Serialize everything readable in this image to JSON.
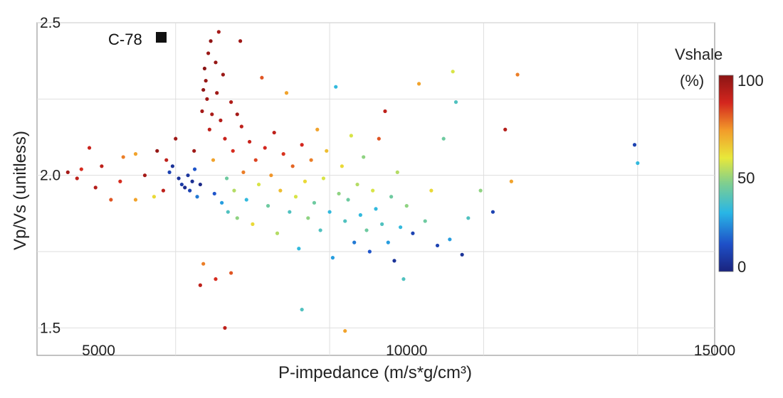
{
  "chart_data": {
    "type": "scatter",
    "title": "",
    "xlabel": "P-impedance (m/s*g/cm³)",
    "ylabel": "Vp/Vs (unitless)",
    "xlim": [
      4000,
      15000
    ],
    "ylim": [
      1.41,
      2.5
    ],
    "x_ticks": [
      5000,
      10000,
      15000
    ],
    "y_ticks": [
      1.5,
      2.0,
      2.5
    ],
    "x_tick_labels": [
      "5000",
      "10000",
      "15000"
    ],
    "y_tick_labels": [
      "1.5",
      "2.0",
      "2.5"
    ],
    "grid": true,
    "well_label": "C-78",
    "colorbar": {
      "title": "Vshale",
      "unit": "(%)",
      "range": [
        0,
        100
      ],
      "ticks": [
        "0",
        "50",
        "100"
      ],
      "colormap": [
        "#1a237e",
        "#1e50c8",
        "#29b6e6",
        "#7fcf8f",
        "#e8e83a",
        "#f29b2a",
        "#d4261e",
        "#8b1414"
      ]
    },
    "points": [
      [
        4500,
        2.01,
        95
      ],
      [
        4650,
        1.99,
        90
      ],
      [
        4720,
        2.02,
        85
      ],
      [
        4850,
        2.09,
        88
      ],
      [
        4950,
        1.96,
        92
      ],
      [
        5050,
        2.03,
        90
      ],
      [
        5200,
        1.92,
        80
      ],
      [
        5350,
        1.98,
        85
      ],
      [
        5600,
        2.07,
        70
      ],
      [
        5750,
        2.0,
        95
      ],
      [
        5900,
        1.93,
        60
      ],
      [
        5950,
        2.08,
        98
      ],
      [
        6050,
        1.95,
        90
      ],
      [
        6150,
        2.01,
        10
      ],
      [
        6200,
        2.03,
        5
      ],
      [
        6250,
        2.12,
        96
      ],
      [
        6300,
        1.99,
        5
      ],
      [
        6350,
        1.97,
        8
      ],
      [
        6400,
        1.96,
        3
      ],
      [
        6450,
        2.0,
        6
      ],
      [
        6480,
        1.95,
        10
      ],
      [
        6520,
        1.98,
        4
      ],
      [
        6560,
        2.02,
        15
      ],
      [
        6600,
        1.93,
        20
      ],
      [
        6650,
        1.97,
        2
      ],
      [
        6680,
        2.21,
        95
      ],
      [
        6700,
        2.28,
        99
      ],
      [
        6720,
        2.35,
        100
      ],
      [
        6740,
        2.31,
        98
      ],
      [
        6760,
        2.25,
        96
      ],
      [
        6780,
        2.4,
        97
      ],
      [
        6800,
        2.15,
        90
      ],
      [
        6820,
        2.44,
        99
      ],
      [
        6840,
        2.2,
        94
      ],
      [
        6860,
        2.05,
        70
      ],
      [
        6880,
        1.94,
        15
      ],
      [
        6900,
        2.37,
        98
      ],
      [
        6920,
        2.27,
        96
      ],
      [
        6950,
        2.47,
        95
      ],
      [
        6980,
        2.18,
        92
      ],
      [
        7000,
        1.91,
        25
      ],
      [
        7020,
        2.33,
        97
      ],
      [
        7050,
        2.12,
        88
      ],
      [
        7080,
        1.99,
        40
      ],
      [
        7100,
        1.88,
        35
      ],
      [
        7150,
        2.24,
        93
      ],
      [
        7180,
        2.08,
        85
      ],
      [
        7200,
        1.95,
        50
      ],
      [
        7250,
        1.86,
        45
      ],
      [
        7300,
        2.44,
        96
      ],
      [
        7320,
        2.16,
        90
      ],
      [
        7350,
        2.01,
        75
      ],
      [
        7400,
        1.92,
        30
      ],
      [
        7450,
        2.11,
        88
      ],
      [
        7500,
        1.84,
        60
      ],
      [
        7550,
        2.05,
        82
      ],
      [
        7600,
        1.97,
        55
      ],
      [
        7650,
        2.32,
        80
      ],
      [
        7700,
        2.09,
        86
      ],
      [
        7750,
        1.9,
        40
      ],
      [
        7800,
        2.0,
        72
      ],
      [
        7850,
        2.14,
        90
      ],
      [
        7900,
        1.81,
        50
      ],
      [
        7950,
        1.95,
        65
      ],
      [
        8000,
        2.07,
        84
      ],
      [
        8050,
        2.27,
        70
      ],
      [
        8100,
        1.88,
        35
      ],
      [
        8150,
        2.03,
        78
      ],
      [
        8200,
        1.93,
        55
      ],
      [
        8250,
        1.76,
        30
      ],
      [
        8300,
        2.1,
        86
      ],
      [
        8350,
        1.98,
        60
      ],
      [
        8400,
        1.86,
        45
      ],
      [
        8450,
        2.05,
        75
      ],
      [
        8500,
        1.91,
        40
      ],
      [
        8550,
        2.15,
        70
      ],
      [
        8600,
        1.82,
        35
      ],
      [
        8650,
        1.99,
        55
      ],
      [
        8700,
        2.08,
        65
      ],
      [
        8750,
        1.88,
        30
      ],
      [
        8800,
        1.73,
        25
      ],
      [
        8850,
        2.29,
        30
      ],
      [
        8900,
        1.94,
        45
      ],
      [
        8950,
        2.03,
        60
      ],
      [
        9000,
        1.85,
        35
      ],
      [
        9050,
        1.92,
        40
      ],
      [
        9100,
        2.13,
        55
      ],
      [
        9150,
        1.78,
        20
      ],
      [
        9200,
        1.97,
        50
      ],
      [
        9250,
        1.87,
        30
      ],
      [
        9300,
        2.06,
        45
      ],
      [
        9350,
        1.82,
        40
      ],
      [
        9400,
        1.75,
        15
      ],
      [
        9450,
        1.95,
        55
      ],
      [
        9500,
        1.89,
        30
      ],
      [
        9550,
        2.12,
        80
      ],
      [
        9600,
        1.84,
        35
      ],
      [
        9650,
        2.21,
        90
      ],
      [
        9700,
        1.78,
        25
      ],
      [
        9750,
        1.93,
        40
      ],
      [
        9800,
        1.72,
        5
      ],
      [
        9850,
        2.01,
        50
      ],
      [
        9900,
        1.83,
        30
      ],
      [
        9950,
        1.66,
        35
      ],
      [
        10000,
        1.9,
        45
      ],
      [
        10100,
        1.81,
        10
      ],
      [
        10200,
        2.3,
        70
      ],
      [
        10300,
        1.85,
        40
      ],
      [
        10400,
        1.95,
        60
      ],
      [
        10500,
        1.77,
        10
      ],
      [
        10600,
        2.12,
        40
      ],
      [
        10700,
        1.79,
        25
      ],
      [
        10750,
        2.34,
        55
      ],
      [
        10800,
        2.24,
        35
      ],
      [
        10900,
        1.74,
        5
      ],
      [
        11000,
        1.86,
        35
      ],
      [
        11200,
        1.95,
        45
      ],
      [
        11400,
        1.88,
        10
      ],
      [
        11600,
        2.15,
        92
      ],
      [
        11700,
        1.98,
        70
      ],
      [
        11800,
        2.33,
        75
      ],
      [
        13700,
        2.1,
        10
      ],
      [
        13750,
        2.04,
        30
      ],
      [
        7050,
        1.5,
        90
      ],
      [
        8300,
        1.56,
        35
      ],
      [
        9000,
        1.49,
        70
      ],
      [
        6650,
        1.64,
        90
      ],
      [
        6700,
        1.71,
        75
      ],
      [
        7150,
        1.68,
        80
      ],
      [
        6900,
        1.66,
        85
      ],
      [
        5600,
        1.92,
        70
      ],
      [
        5400,
        2.06,
        75
      ],
      [
        6100,
        2.05,
        90
      ],
      [
        6550,
        2.08,
        96
      ],
      [
        7250,
        2.2,
        95
      ]
    ]
  }
}
